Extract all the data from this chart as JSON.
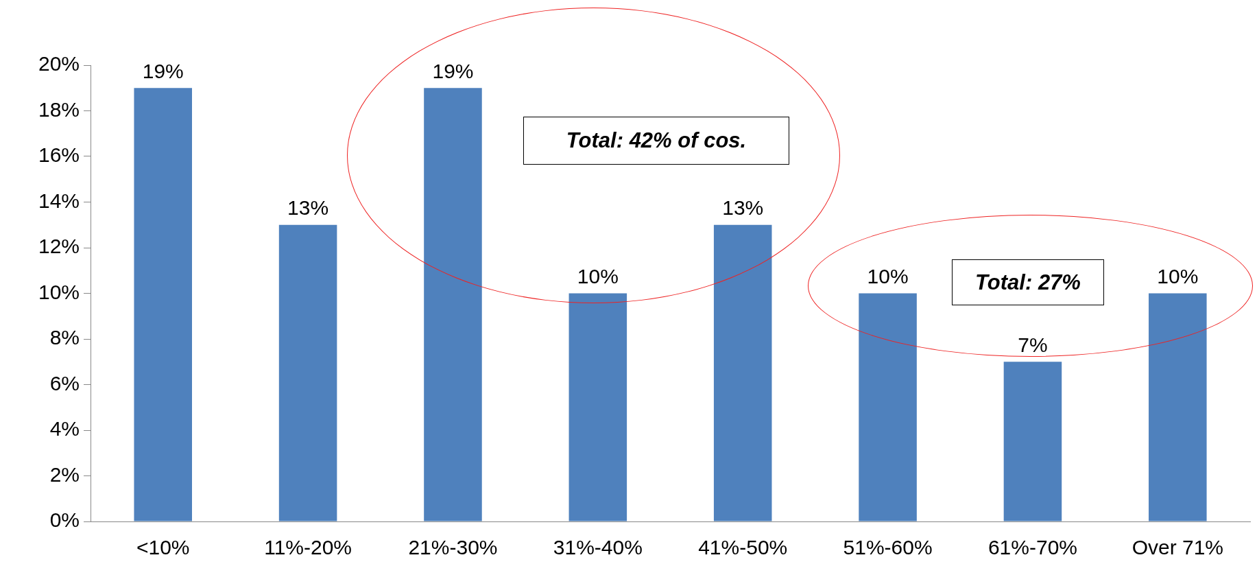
{
  "chart_data": {
    "type": "bar",
    "categories": [
      "<10%",
      "11%-20%",
      "21%-30%",
      "31%-40%",
      "41%-50%",
      "51%-60%",
      "61%-70%",
      "Over 71%"
    ],
    "values": [
      19,
      13,
      19,
      10,
      13,
      10,
      7,
      10
    ],
    "value_labels": [
      "19%",
      "13%",
      "19%",
      "10%",
      "13%",
      "10%",
      "7%",
      "10%"
    ],
    "color": "#4f81bd",
    "ylim": [
      0,
      20
    ],
    "yticks": [
      {
        "value": 0,
        "label": "0%"
      },
      {
        "value": 2,
        "label": "2%"
      },
      {
        "value": 4,
        "label": "4%"
      },
      {
        "value": 6,
        "label": "6%"
      },
      {
        "value": 8,
        "label": "8%"
      },
      {
        "value": 10,
        "label": "10%"
      },
      {
        "value": 12,
        "label": "12%"
      },
      {
        "value": 14,
        "label": "14%"
      },
      {
        "value": 16,
        "label": "16%"
      },
      {
        "value": 18,
        "label": "18%"
      },
      {
        "value": 20,
        "label": "20%"
      }
    ],
    "grid": false,
    "legend": false,
    "annotations": [
      "Total: 42% of cos.",
      "Total: 27%"
    ]
  }
}
